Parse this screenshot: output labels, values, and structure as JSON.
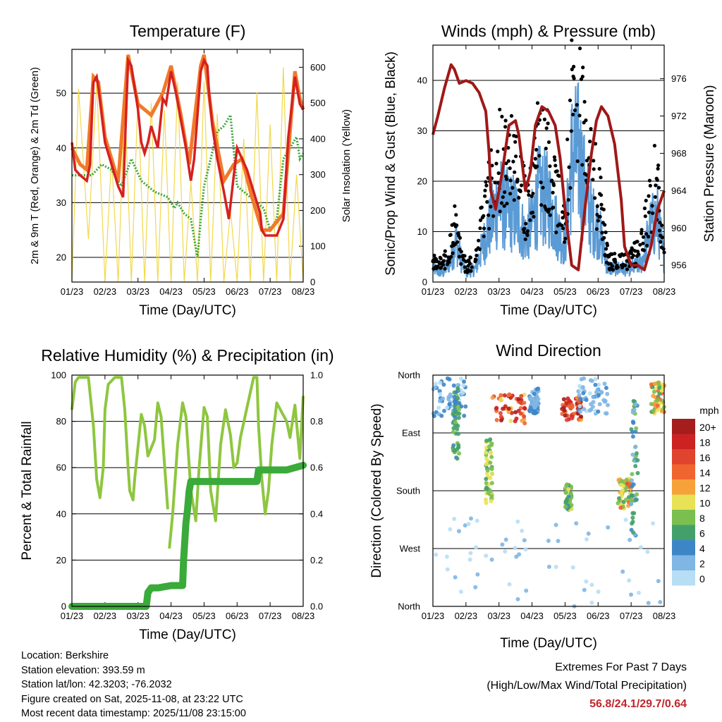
{
  "colors": {
    "temp_2m": "#d62020",
    "temp_9m": "#f07a2a",
    "dewpoint": "#3aa63a",
    "solar": "#f2d84a",
    "wind_sonic": "#5b9bd5",
    "wind_gust": "#000000",
    "pressure": "#a01818",
    "rh": "#8ec63f",
    "precip": "#3aaa3a",
    "extremes": "#c0262c"
  },
  "chart_data": [
    {
      "type": "line",
      "title": "Temperature (F)",
      "xlabel": "Time (Day/UTC)",
      "ylabel": "2m & 9m T (Red, Orange) & 2m Td (Green)",
      "y2label": "Solar Insolation (Yellow)",
      "x_ticks": [
        "01/23",
        "02/23",
        "03/23",
        "04/23",
        "05/23",
        "06/23",
        "07/23",
        "08/23"
      ],
      "xlim": [
        0,
        7
      ],
      "ylim": [
        15.5,
        58
      ],
      "y_ticks": [
        20,
        30,
        40,
        50
      ],
      "y2lim": [
        0,
        650
      ],
      "y2_ticks": [
        0,
        100,
        200,
        300,
        400,
        500,
        600
      ],
      "series": [
        {
          "name": "2m T",
          "axis": "left",
          "x": [
            0,
            0.1,
            0.25,
            0.45,
            0.55,
            0.6,
            0.65,
            0.75,
            0.8,
            0.9,
            1.0,
            1.2,
            1.4,
            1.55,
            1.6,
            1.7,
            1.8,
            1.9,
            2.0,
            2.1,
            2.2,
            2.3,
            2.4,
            2.5,
            2.6,
            2.7,
            2.75,
            2.85,
            3.0,
            3.15,
            3.3,
            3.45,
            3.55,
            3.6,
            3.7,
            3.8,
            3.9,
            4.0,
            4.1,
            4.15,
            4.25,
            4.4,
            4.6,
            4.75,
            4.9,
            5.0,
            5.15,
            5.3,
            5.45,
            5.6,
            5.7,
            5.75,
            5.85,
            6.0,
            6.2,
            6.4,
            6.55,
            6.75,
            6.9,
            7.0
          ],
          "y": [
            41,
            36,
            35,
            34,
            37,
            45,
            52,
            53,
            51,
            46,
            41,
            37,
            33,
            31,
            40,
            56,
            55,
            51,
            47,
            41,
            39,
            41,
            44,
            42,
            40,
            46,
            49,
            48,
            54,
            50,
            45,
            40,
            36,
            34,
            38,
            46,
            54,
            56,
            55,
            50,
            44,
            38,
            32,
            27,
            35,
            40,
            38,
            36,
            33,
            30,
            28,
            25,
            24,
            24,
            24,
            27,
            42,
            53,
            48,
            47
          ]
        },
        {
          "name": "9m T",
          "axis": "left",
          "x": [
            0,
            0.25,
            0.45,
            0.65,
            0.8,
            1.0,
            1.4,
            1.7,
            2.0,
            2.4,
            2.75,
            3.0,
            3.3,
            3.55,
            3.9,
            4.0,
            4.25,
            4.6,
            4.9,
            5.15,
            5.45,
            5.75,
            6.0,
            6.4,
            6.75,
            6.9,
            7.0
          ],
          "y": [
            40,
            37,
            36,
            53,
            52,
            42,
            34,
            57,
            48,
            46,
            50,
            55,
            46,
            37,
            55,
            57,
            45,
            34,
            37,
            38,
            31,
            25,
            25,
            28,
            54,
            49,
            47
          ]
        },
        {
          "name": "2m Td",
          "axis": "left",
          "x": [
            0,
            0.3,
            0.6,
            0.9,
            1.2,
            1.5,
            1.8,
            2.1,
            2.5,
            2.9,
            3.0,
            3.1,
            3.2,
            3.4,
            3.6,
            3.8,
            3.9,
            4.0,
            4.2,
            4.4,
            4.6,
            4.8,
            5.0,
            5.2,
            5.4,
            5.6,
            5.8,
            6.0,
            6.2,
            6.4,
            6.6,
            6.8,
            6.9,
            7.0
          ],
          "y": [
            35,
            35,
            35,
            37,
            36,
            33,
            38,
            34,
            32,
            31,
            30,
            29,
            30,
            28,
            27,
            20,
            27,
            33,
            38,
            43,
            44,
            46,
            33,
            32,
            31,
            30,
            29,
            25,
            27,
            38,
            40,
            42,
            38,
            39
          ]
        },
        {
          "name": "Solar Insolation",
          "axis": "right",
          "x": [
            0,
            0.2,
            0.5,
            0.75,
            1.0,
            1.2,
            1.4,
            1.6,
            1.8,
            2.0,
            2.2,
            2.4,
            2.6,
            2.8,
            3.0,
            3.2,
            3.4,
            3.6,
            3.8,
            4.0,
            4.2,
            4.4,
            4.6,
            4.8,
            5.0,
            5.2,
            5.4,
            5.6,
            5.8,
            6.0,
            6.2,
            6.4,
            6.6,
            6.8,
            7.0
          ],
          "y": [
            0,
            540,
            120,
            560,
            0,
            350,
            0,
            520,
            0,
            520,
            0,
            500,
            0,
            480,
            0,
            560,
            0,
            280,
            0,
            560,
            0,
            470,
            0,
            200,
            0,
            400,
            0,
            530,
            0,
            440,
            0,
            600,
            0,
            300,
            0
          ]
        }
      ]
    },
    {
      "type": "line",
      "title": "Winds (mph) & Pressure (mb)",
      "xlabel": "Time (Day/UTC)",
      "ylabel": "Sonic/Prop Wind & Gust (Blue, Black)",
      "y2label": "Station Pressure (Maroon)",
      "x_ticks": [
        "01/23",
        "02/23",
        "03/23",
        "04/23",
        "05/23",
        "06/23",
        "07/23",
        "08/23"
      ],
      "xlim": [
        0,
        7
      ],
      "ylim": [
        0,
        47
      ],
      "y_ticks": [
        0,
        10,
        20,
        30,
        40
      ],
      "y2lim": [
        954.2,
        979.6
      ],
      "y2_ticks": [
        956,
        960,
        964,
        968,
        972,
        976
      ],
      "series": [
        {
          "name": "Sonic/Prop Wind",
          "axis": "left",
          "x": [
            0,
            0.3,
            0.55,
            0.7,
            0.85,
            1.0,
            1.3,
            1.6,
            1.8,
            2.0,
            2.2,
            2.5,
            2.8,
            3.0,
            3.2,
            3.5,
            3.8,
            4.0,
            4.2,
            4.4,
            4.6,
            4.8,
            5.0,
            5.3,
            5.6,
            5.8,
            6.0,
            6.3,
            6.6,
            6.8,
            7.0
          ],
          "y": [
            3,
            2,
            5,
            9,
            5,
            2,
            3,
            10,
            14,
            18,
            16,
            15,
            10,
            13,
            19,
            18,
            11,
            8,
            27,
            28,
            20,
            14,
            12,
            3,
            3,
            3,
            3,
            4,
            12,
            14,
            5
          ]
        },
        {
          "name": "Gust",
          "axis": "left",
          "x": [
            0,
            0.3,
            0.55,
            0.7,
            0.85,
            1.0,
            1.3,
            1.6,
            1.8,
            2.0,
            2.2,
            2.5,
            2.8,
            3.0,
            3.2,
            3.5,
            3.8,
            4.0,
            4.2,
            4.4,
            4.6,
            4.8,
            5.0,
            5.3,
            5.6,
            5.8,
            6.0,
            6.3,
            6.6,
            6.8,
            7.0
          ],
          "y": [
            5,
            4,
            10,
            14,
            6,
            4,
            5,
            20,
            25,
            30,
            28,
            28,
            18,
            20,
            33,
            30,
            18,
            15,
            40,
            44,
            32,
            28,
            22,
            5,
            5,
            5,
            6,
            8,
            20,
            25,
            8
          ]
        },
        {
          "name": "Station Pressure",
          "axis": "right",
          "x": [
            0,
            0.15,
            0.35,
            0.55,
            0.65,
            0.8,
            1.0,
            1.2,
            1.4,
            1.6,
            1.7,
            1.75,
            1.9,
            2.1,
            2.3,
            2.5,
            2.6,
            2.8,
            2.95,
            3.1,
            3.3,
            3.5,
            3.7,
            3.85,
            4.0,
            4.2,
            4.4,
            4.6,
            4.8,
            4.95,
            5.1,
            5.3,
            5.5,
            5.7,
            5.8,
            6.0,
            6.2,
            6.4,
            6.6,
            6.8,
            7.0
          ],
          "y": [
            970,
            972,
            975,
            977.5,
            977,
            975.5,
            975.8,
            975.5,
            974.5,
            972.5,
            968,
            964,
            962,
            966,
            971,
            971.5,
            970,
            964,
            966,
            971,
            973,
            972.5,
            971,
            967.5,
            962,
            956,
            955.5,
            962,
            968,
            971.5,
            973,
            972,
            969,
            963,
            958,
            956,
            956,
            955.5,
            958,
            962,
            964
          ]
        }
      ]
    },
    {
      "type": "line",
      "title": "Relative Humidity (%) & Precipitation (in)",
      "xlabel": "Time (Day/UTC)",
      "ylabel": "Percent & Total Rainfall",
      "x_ticks": [
        "01/23",
        "02/23",
        "03/23",
        "04/23",
        "05/23",
        "06/23",
        "07/23",
        "08/23"
      ],
      "xlim": [
        0,
        7
      ],
      "ylim": [
        0,
        100
      ],
      "y_ticks": [
        0,
        20,
        40,
        60,
        80,
        100
      ],
      "y2lim": [
        0,
        1.0
      ],
      "y2_ticks": [
        0.0,
        0.2,
        0.4,
        0.6,
        0.8,
        1.0
      ],
      "series": [
        {
          "name": "Relative Humidity",
          "axis": "left",
          "x": [
            0,
            0.1,
            0.2,
            0.5,
            0.65,
            0.75,
            0.85,
            0.95,
            1.0,
            1.1,
            1.3,
            1.5,
            1.6,
            1.7,
            1.75,
            1.85,
            1.9,
            2.1,
            2.2,
            2.3,
            2.5,
            2.6,
            2.7,
            2.8,
            2.9
          ],
          "y": [
            85,
            97,
            99,
            99,
            78,
            55,
            47,
            60,
            85,
            96,
            99,
            99,
            85,
            60,
            50,
            46,
            55,
            83,
            78,
            65,
            72,
            88,
            82,
            62,
            42
          ]
        },
        {
          "name": "Relative Humidity",
          "axis": "left",
          "x": [
            2.95,
            3.05,
            3.2,
            3.35,
            3.45,
            3.6,
            3.75,
            3.85,
            4.0,
            4.1,
            4.2,
            4.35,
            4.5,
            4.65,
            4.8,
            4.9,
            5.0,
            5.1,
            5.3,
            5.5,
            5.6,
            5.65,
            5.75,
            5.85,
            5.95,
            6.05,
            6.2,
            6.35,
            6.5,
            6.6,
            6.75,
            6.9,
            7.0
          ],
          "y": [
            25,
            40,
            70,
            88,
            82,
            50,
            37,
            60,
            86,
            82,
            50,
            37,
            70,
            85,
            74,
            60,
            62,
            73,
            86,
            99,
            99,
            78,
            55,
            40,
            50,
            70,
            88,
            84,
            80,
            73,
            87,
            64,
            91
          ]
        },
        {
          "name": "Total Precipitation",
          "axis": "right",
          "x": [
            0,
            1.0,
            2.0,
            2.25,
            2.3,
            2.4,
            2.6,
            3.0,
            3.35,
            3.38,
            3.45,
            3.5,
            3.55,
            3.6,
            4.0,
            5.0,
            5.6,
            5.65,
            6.0,
            6.5,
            7.0
          ],
          "y": [
            0.0,
            0.0,
            0.0,
            0.0,
            0.06,
            0.08,
            0.08,
            0.09,
            0.09,
            0.2,
            0.36,
            0.42,
            0.5,
            0.54,
            0.54,
            0.54,
            0.54,
            0.59,
            0.59,
            0.59,
            0.61
          ]
        }
      ]
    },
    {
      "type": "scatter",
      "title": "Wind Direction",
      "xlabel": "Time (Day/UTC)",
      "ylabel": "Direction (Colored By Speed)",
      "x_ticks": [
        "01/23",
        "02/23",
        "03/23",
        "04/23",
        "05/23",
        "06/23",
        "07/23",
        "08/23"
      ],
      "xlim": [
        0,
        7
      ],
      "y_categories": [
        "North",
        "West",
        "South",
        "East",
        "North"
      ],
      "ylim": [
        0,
        360
      ],
      "legend_title": "mph",
      "legend_labels": [
        "20+",
        "18",
        "16",
        "14",
        "12",
        "10",
        "8",
        "6",
        "4",
        "2",
        "0"
      ],
      "legend_colors": [
        "#a51d1d",
        "#cc2222",
        "#e0432e",
        "#f0642f",
        "#f7a13b",
        "#e8e256",
        "#7bbf4f",
        "#44a06a",
        "#3d86c6",
        "#7fb6e4",
        "#b7def5"
      ],
      "clusters": [
        {
          "x": [
            0.0,
            1.0
          ],
          "dir": [
            295,
            355
          ],
          "speed": [
            0,
            5
          ]
        },
        {
          "x": [
            0.6,
            0.8
          ],
          "dir": [
            230,
            340
          ],
          "speed": [
            4,
            8
          ]
        },
        {
          "x": [
            1.6,
            1.8
          ],
          "dir": [
            160,
            260
          ],
          "speed": [
            6,
            11
          ]
        },
        {
          "x": [
            1.8,
            2.8
          ],
          "dir": [
            285,
            330
          ],
          "speed": [
            10,
            20
          ]
        },
        {
          "x": [
            2.9,
            3.2
          ],
          "dir": [
            300,
            340
          ],
          "speed": [
            1,
            4
          ]
        },
        {
          "x": [
            3.9,
            4.5
          ],
          "dir": [
            290,
            325
          ],
          "speed": [
            12,
            20
          ]
        },
        {
          "x": [
            4.4,
            5.3
          ],
          "dir": [
            300,
            355
          ],
          "speed": [
            0,
            4
          ]
        },
        {
          "x": [
            4.0,
            4.2
          ],
          "dir": [
            150,
            190
          ],
          "speed": [
            4,
            10
          ]
        },
        {
          "x": [
            5.6,
            6.0
          ],
          "dir": [
            150,
            200
          ],
          "speed": [
            6,
            16
          ]
        },
        {
          "x": [
            6.0,
            6.2
          ],
          "dir": [
            100,
            320
          ],
          "speed": [
            2,
            8
          ]
        },
        {
          "x": [
            6.6,
            7.0
          ],
          "dir": [
            300,
            350
          ],
          "speed": [
            6,
            14
          ]
        },
        {
          "x": [
            0.0,
            7.0
          ],
          "dir": [
            0,
            140
          ],
          "speed": [
            0,
            2
          ]
        }
      ]
    }
  ],
  "footer": {
    "location": "Location: Berkshire",
    "elevation": "Station elevation: 393.59 m",
    "latlon": "Station lat/lon: 42.3203; -76.2032",
    "created": "Figure created on Sat, 2025-11-08, at 23:22 UTC",
    "timestamp": "Most recent data timestamp: 2025/11/08 23:15:00",
    "extremes_title": "Extremes For Past 7 Days",
    "extremes_subtitle": "(High/Low/Max Wind/Total Precipitation)",
    "extremes_values": "56.8/24.1/29.7/0.64"
  }
}
